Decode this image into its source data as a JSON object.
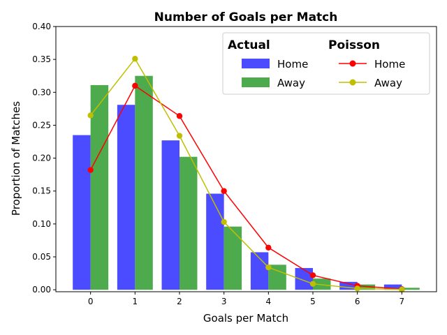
{
  "chart_data": {
    "type": "bar",
    "title": "Number of Goals per Match",
    "xlabel": "Goals per Match",
    "ylabel": "Proportion of Matches",
    "categories": [
      "0",
      "1",
      "2",
      "3",
      "4",
      "5",
      "6",
      "7"
    ],
    "x": [
      0,
      1,
      2,
      3,
      4,
      5,
      6,
      7
    ],
    "xlim": [
      -0.78,
      7.78
    ],
    "ylim": [
      -0.003,
      0.4
    ],
    "yticks": [
      "0.00",
      "0.05",
      "0.10",
      "0.15",
      "0.20",
      "0.25",
      "0.30",
      "0.35",
      "0.40"
    ],
    "ytick_values": [
      0,
      0.05,
      0.1,
      0.15,
      0.2,
      0.25,
      0.3,
      0.35,
      0.4
    ],
    "grid": false,
    "legend_placement": "top-right",
    "legend": {
      "actual_title": "Actual",
      "poisson_title": "Poisson",
      "actual_home": "Home",
      "actual_away": "Away",
      "poisson_home": "Home",
      "poisson_away": "Away"
    },
    "bar_series": [
      {
        "name": "Home",
        "group": "Actual",
        "color": "#4b4bff",
        "values": [
          0.235,
          0.281,
          0.227,
          0.146,
          0.057,
          0.033,
          0.012,
          0.008
        ]
      },
      {
        "name": "Away",
        "group": "Actual",
        "color": "#4daa4d",
        "values": [
          0.311,
          0.325,
          0.202,
          0.096,
          0.038,
          0.017,
          0.008,
          0.003
        ]
      }
    ],
    "line_series": [
      {
        "name": "Home",
        "group": "Poisson",
        "color": "#ff0000",
        "values": [
          0.182,
          0.31,
          0.264,
          0.15,
          0.064,
          0.022,
          0.006,
          0.001
        ]
      },
      {
        "name": "Away",
        "group": "Poisson",
        "color": "#bfbf00",
        "values": [
          0.265,
          0.351,
          0.234,
          0.103,
          0.034,
          0.009,
          0.002,
          0.0004
        ]
      }
    ]
  }
}
